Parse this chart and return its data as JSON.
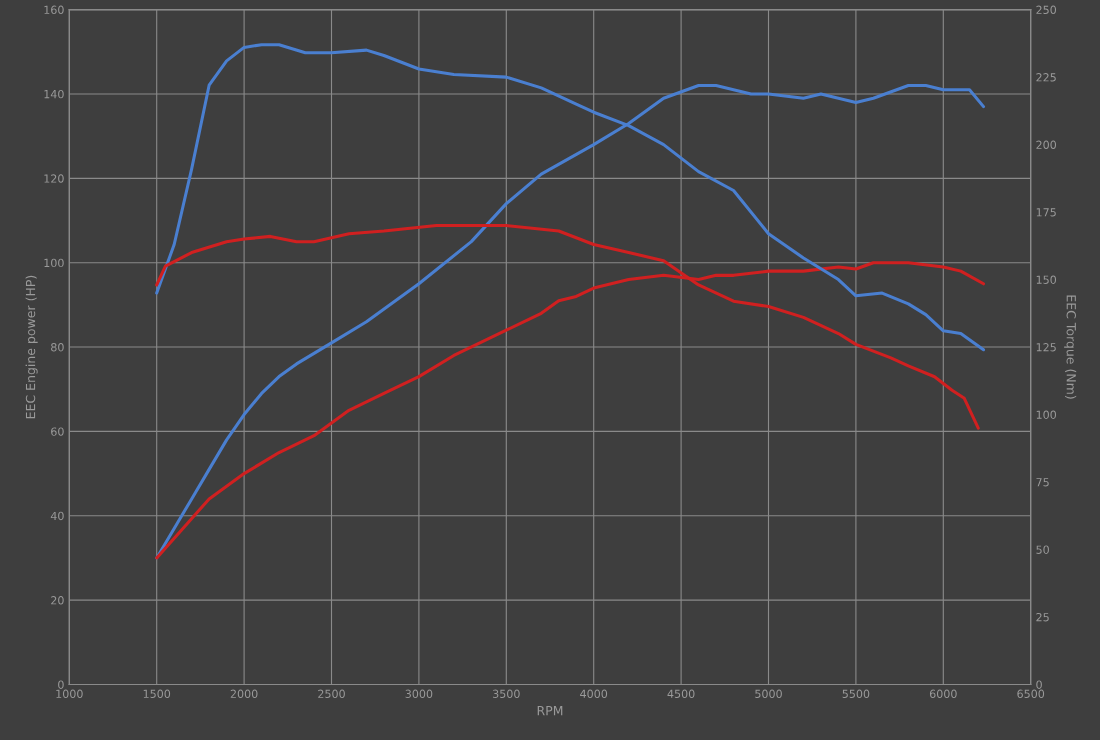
{
  "chart_data": {
    "type": "line",
    "xlabel": "RPM",
    "ylabel": "EEC Engine power (HP)",
    "y2label": "EEC Torque (Nm)",
    "xlim": [
      1000,
      6500
    ],
    "xticks": [
      1000,
      1500,
      2000,
      2500,
      3000,
      3500,
      4000,
      4500,
      5000,
      5500,
      6000,
      6500
    ],
    "ylim": [
      0,
      160
    ],
    "yticks": [
      0,
      20,
      40,
      60,
      80,
      100,
      120,
      140,
      160
    ],
    "y2lim": [
      0,
      250
    ],
    "y2ticks": [
      0,
      25,
      50,
      75,
      100,
      125,
      150,
      175,
      200,
      225,
      250
    ],
    "grid": true,
    "marker": "none",
    "line_style": "solid",
    "series": [
      {
        "color": "#4a7fd0",
        "x": [
          1500,
          1600,
          1700,
          1800,
          1900,
          2000,
          2100,
          2200,
          2300,
          2500,
          2700,
          3000,
          3300,
          3500,
          3700,
          4000,
          4200,
          4400,
          4600,
          4700,
          4900,
          5000,
          5200,
          5300,
          5500,
          5600,
          5800,
          5900,
          6000,
          6150,
          6230
        ],
        "values": [
          30,
          37,
          44,
          51,
          58,
          64,
          69,
          73,
          76,
          81,
          86,
          95,
          105,
          114,
          121,
          128,
          133,
          139,
          142,
          142,
          140,
          140,
          139,
          140,
          138,
          139,
          142,
          142,
          141,
          141,
          137
        ]
      },
      {
        "color": "#d02020",
        "x": [
          1500,
          1650,
          1800,
          2000,
          2200,
          2400,
          2600,
          2800,
          3000,
          3200,
          3500,
          3700,
          3800,
          3900,
          4000,
          4200,
          4400,
          4600,
          4700,
          4800,
          5000,
          5200,
          5400,
          5500,
          5600,
          5800,
          6000,
          6100,
          6230
        ],
        "values": [
          30,
          37,
          44,
          50,
          55,
          59,
          65,
          69,
          73,
          78,
          84,
          88,
          91,
          92,
          94,
          96,
          97,
          96,
          97,
          97,
          98,
          98,
          99,
          98.5,
          100,
          100,
          99,
          98,
          95
        ]
      },
      {
        "color": "#4a7fd0",
        "axis": "y2",
        "x": [
          1500,
          1600,
          1700,
          1800,
          1900,
          2000,
          2100,
          2200,
          2350,
          2500,
          2700,
          2800,
          3000,
          3200,
          3500,
          3700,
          3900,
          4000,
          4200,
          4400,
          4600,
          4800,
          5000,
          5200,
          5400,
          5500,
          5650,
          5800,
          5900,
          6000,
          6100,
          6230
        ],
        "values": [
          145,
          163,
          191,
          222,
          231,
          236,
          237,
          237,
          234,
          234,
          235,
          233,
          228,
          226,
          225,
          221,
          215,
          212,
          207,
          200,
          190,
          183,
          167,
          158,
          150,
          144,
          145,
          141,
          137,
          131,
          130,
          124
        ]
      },
      {
        "color": "#d02020",
        "axis": "y2",
        "x": [
          1500,
          1550,
          1700,
          1900,
          2000,
          2150,
          2300,
          2400,
          2600,
          2800,
          3100,
          3500,
          3800,
          4000,
          4200,
          4400,
          4600,
          4800,
          5000,
          5200,
          5400,
          5500,
          5700,
          5800,
          5950,
          6050,
          6120,
          6200
        ],
        "values": [
          148,
          155,
          160,
          164,
          165,
          166,
          164,
          164,
          167,
          168,
          170,
          170,
          168,
          163,
          160,
          157,
          148,
          142,
          140,
          136,
          130,
          126,
          121,
          118,
          114,
          109,
          106,
          95
        ]
      }
    ]
  }
}
